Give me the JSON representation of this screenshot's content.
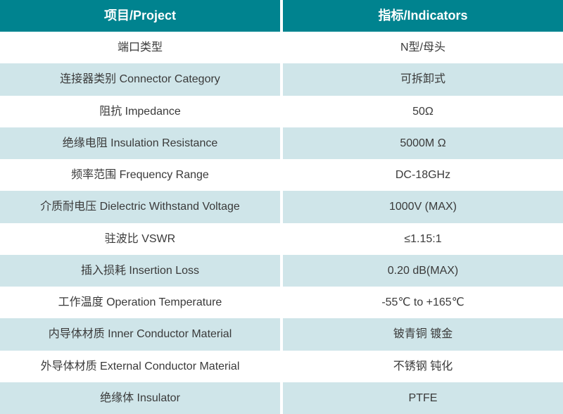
{
  "colors": {
    "header_bg": "#00838f",
    "header_text": "#ffffff",
    "row_white_bg": "#ffffff",
    "row_tint_bg": "#cfe5e9",
    "body_text": "#3a3a3a",
    "column_divider": "#ffffff"
  },
  "table": {
    "header": {
      "project": "项目/Project",
      "indicators": "指标/Indicators"
    },
    "rows": [
      {
        "project": "端口类型",
        "indicator": "N型/母头"
      },
      {
        "project": "连接器类别 Connector Category",
        "indicator": "可拆卸式"
      },
      {
        "project": "阻抗 Impedance",
        "indicator": "50Ω"
      },
      {
        "project": "绝缘电阻 Insulation Resistance",
        "indicator": "5000M Ω"
      },
      {
        "project": "频率范围 Frequency Range",
        "indicator": "DC-18GHz"
      },
      {
        "project": "介质耐电压 Dielectric Withstand Voltage",
        "indicator": "1000V (MAX)"
      },
      {
        "project": "驻波比 VSWR",
        "indicator": "≤1.15:1"
      },
      {
        "project": "插入损耗 Insertion Loss",
        "indicator": "0.20 dB(MAX)"
      },
      {
        "project": "工作温度 Operation Temperature",
        "indicator": "-55℃ to +165℃"
      },
      {
        "project": "内导体材质 Inner Conductor Material",
        "indicator": "铍青铜 镀金"
      },
      {
        "project": "外导体材质 External Conductor Material",
        "indicator": "不锈钢 钝化"
      },
      {
        "project": "绝缘体 Insulator",
        "indicator": "PTFE"
      }
    ]
  }
}
